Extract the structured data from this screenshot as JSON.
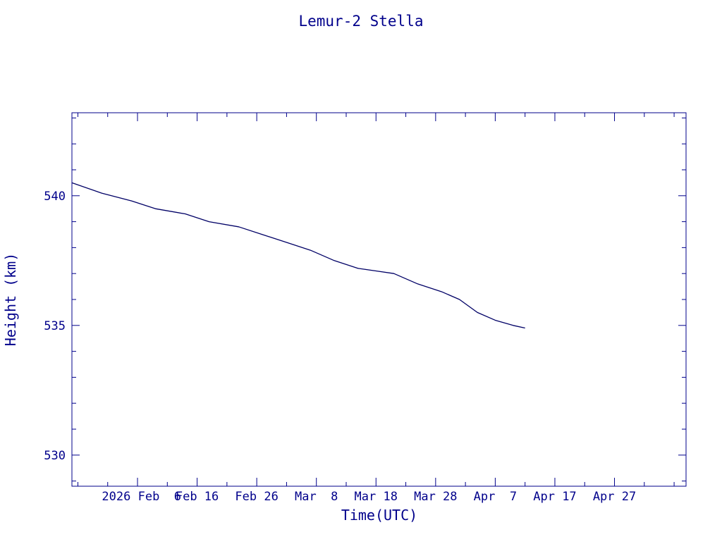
{
  "colors": {
    "axis": "#00008b",
    "text": "#00008b",
    "line": "#000066",
    "background": "#ffffff"
  },
  "chart_data": {
    "type": "line",
    "title": "Lemur-2 Stella",
    "xlabel": "Time(UTC)",
    "ylabel": "Height (km)",
    "grid": false,
    "x_axis": {
      "range": [
        "2026-01-26",
        "2026-05-09"
      ],
      "major_ticks": [
        "2026-02-06",
        "2026-02-16",
        "2026-02-26",
        "2026-03-08",
        "2026-03-18",
        "2026-03-28",
        "2026-04-07",
        "2026-04-17",
        "2026-04-27"
      ],
      "tick_labels": [
        "2026 Feb  6",
        "Feb 16",
        "Feb 26",
        "Mar  8",
        "Mar 18",
        "Mar 28",
        "Apr  7",
        "Apr 17",
        "Apr 27"
      ]
    },
    "y_axis": {
      "range": [
        528.8,
        543.2
      ],
      "major_ticks": [
        530,
        535,
        540
      ],
      "tick_labels": [
        "530",
        "535",
        "540"
      ],
      "minor_step": 1
    },
    "series": [
      {
        "x": [
          "2026-01-26",
          "2026-01-31",
          "2026-02-05",
          "2026-02-09",
          "2026-02-14",
          "2026-02-18",
          "2026-02-23",
          "2026-02-27",
          "2026-03-03",
          "2026-03-07",
          "2026-03-11",
          "2026-03-15",
          "2026-03-18",
          "2026-03-21",
          "2026-03-25",
          "2026-03-29",
          "2026-04-01",
          "2026-04-04",
          "2026-04-07",
          "2026-04-10",
          "2026-04-12"
        ],
        "y": [
          540.5,
          540.1,
          539.8,
          539.5,
          539.3,
          539.0,
          538.8,
          538.5,
          538.2,
          537.9,
          537.5,
          537.2,
          537.1,
          537.0,
          536.6,
          536.3,
          536.0,
          535.5,
          535.2,
          535.0,
          534.9
        ]
      }
    ]
  }
}
